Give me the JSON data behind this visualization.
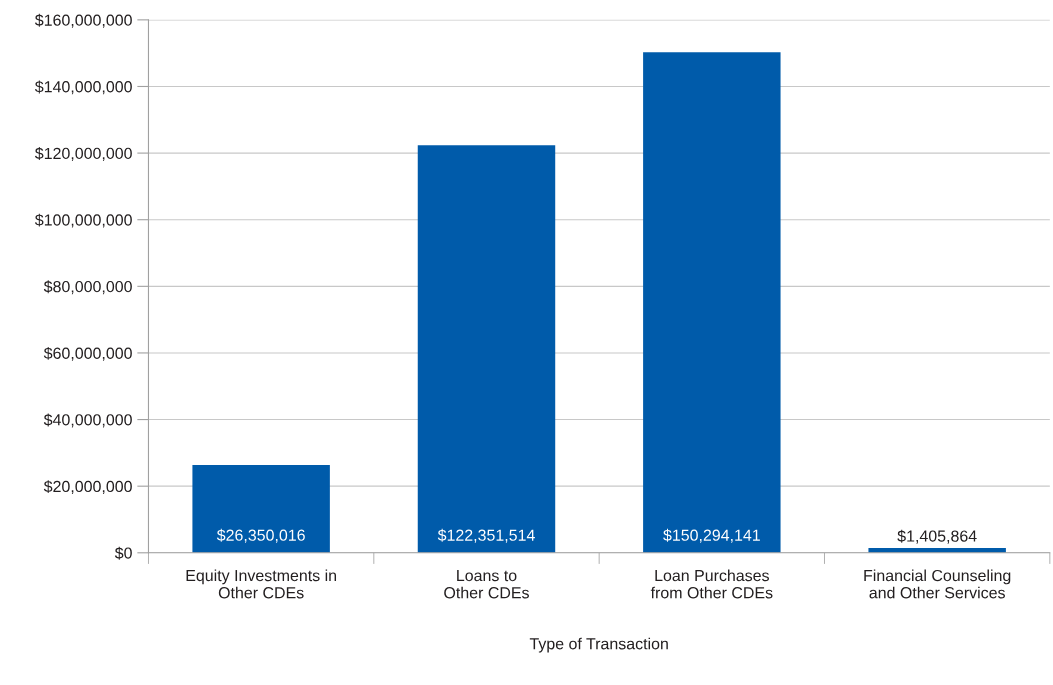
{
  "chart_data": {
    "type": "bar",
    "xlabel": "Type of Transaction",
    "categories": [
      "Equity Investments in\nOther CDEs",
      "Loans to\nOther CDEs",
      "Loan Purchases\nfrom Other CDEs",
      "Financial Counseling\nand Other Services"
    ],
    "series": [
      {
        "color": "#005baa",
        "values": [
          26350016,
          122351514,
          150294141,
          1405864
        ]
      }
    ],
    "value_labels": [
      "$26,350,016",
      "$122,351,514",
      "$150,294,141",
      "$1,405,864"
    ],
    "ylim": [
      0,
      160000000
    ],
    "yticks": [
      {
        "value": 0,
        "label": "$0"
      },
      {
        "value": 20000000,
        "label": "$20,000,000"
      },
      {
        "value": 40000000,
        "label": "$40,000,000"
      },
      {
        "value": 60000000,
        "label": "$60,000,000"
      },
      {
        "value": 80000000,
        "label": "$80,000,000"
      },
      {
        "value": 100000000,
        "label": "$100,000,000"
      },
      {
        "value": 120000000,
        "label": "$120,000,000"
      },
      {
        "value": 140000000,
        "label": "$140,000,000"
      },
      {
        "value": 160000000,
        "label": "$160,000,000"
      }
    ],
    "grid": "y",
    "legend": false
  }
}
